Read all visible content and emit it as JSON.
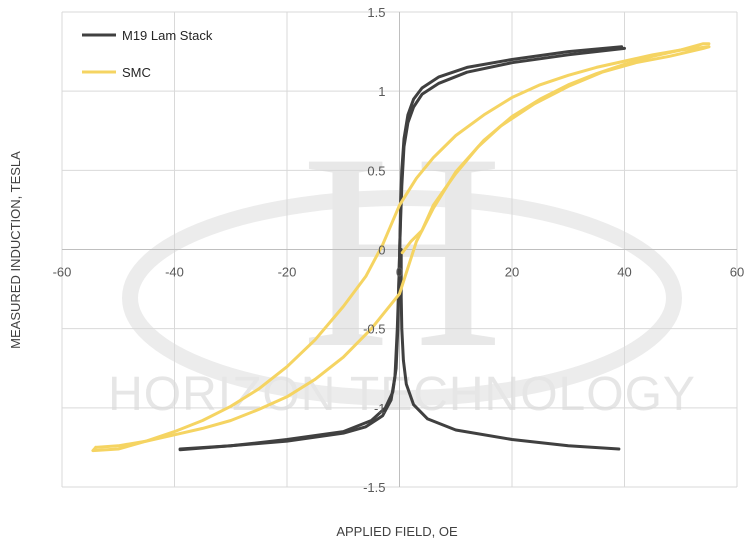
{
  "chart_data": {
    "type": "scatter",
    "title": "",
    "xlabel": "APPLIED FIELD, OE",
    "ylabel": "MEASURED INDUCTION, TESLA",
    "xlim": [
      -60,
      60
    ],
    "ylim": [
      -1.5,
      1.5
    ],
    "xticks": [
      "-60",
      "-40",
      "-20",
      "0",
      "20",
      "40",
      "60"
    ],
    "yticks": [
      "-1.5",
      "-1",
      "-0.5",
      "0",
      "0.5",
      "1",
      "1.5"
    ],
    "grid": true,
    "legend_position": "top-left",
    "watermark": {
      "text": "HORIZON TECHNOLOGY",
      "logo": "H"
    },
    "series": [
      {
        "name": "M19 Lam Stack",
        "color": "#404040",
        "segments": [
          [
            [
              0.3,
              0
            ],
            [
              0.3,
              -0.1
            ],
            [
              0.3,
              -0.3
            ],
            [
              0.4,
              -0.5
            ],
            [
              0.7,
              -0.7
            ],
            [
              1.2,
              -0.85
            ],
            [
              2.5,
              -0.98
            ],
            [
              5,
              -1.07
            ],
            [
              10,
              -1.14
            ],
            [
              20,
              -1.2
            ],
            [
              30,
              -1.24
            ],
            [
              39,
              -1.26
            ]
          ],
          [
            [
              -39,
              -1.26
            ],
            [
              -30,
              -1.24
            ],
            [
              -20,
              -1.21
            ],
            [
              -10,
              -1.16
            ],
            [
              -6,
              -1.12
            ],
            [
              -3,
              -1.05
            ],
            [
              -1.5,
              -0.95
            ],
            [
              -0.8,
              -0.8
            ],
            [
              -0.4,
              -0.5
            ],
            [
              -0.1,
              -0.2
            ],
            [
              0.1,
              0.1
            ],
            [
              0.4,
              0.4
            ],
            [
              0.8,
              0.65
            ],
            [
              1.5,
              0.8
            ],
            [
              2.5,
              0.9
            ],
            [
              4,
              0.98
            ],
            [
              7,
              1.05
            ],
            [
              12,
              1.12
            ],
            [
              20,
              1.18
            ],
            [
              30,
              1.23
            ],
            [
              40,
              1.27
            ]
          ],
          [
            [
              39.5,
              1.28
            ],
            [
              30,
              1.25
            ],
            [
              20,
              1.2
            ],
            [
              12,
              1.15
            ],
            [
              7,
              1.09
            ],
            [
              4,
              1.02
            ],
            [
              2.5,
              0.95
            ],
            [
              1.5,
              0.85
            ],
            [
              0.8,
              0.7
            ],
            [
              0.4,
              0.5
            ],
            [
              0.2,
              0.3
            ],
            [
              0.1,
              0.1
            ],
            [
              -0.1,
              -0.2
            ],
            [
              -0.3,
              -0.5
            ],
            [
              -0.6,
              -0.75
            ],
            [
              -1.2,
              -0.9
            ],
            [
              -2.5,
              -1
            ],
            [
              -5,
              -1.08
            ],
            [
              -10,
              -1.15
            ],
            [
              -20,
              -1.2
            ],
            [
              -30,
              -1.24
            ],
            [
              -39,
              -1.265
            ]
          ]
        ]
      },
      {
        "name": "SMC",
        "color": "#f5d462",
        "segments": [
          [
            [
              0.5,
              -0.02
            ],
            [
              2,
              0.05
            ],
            [
              4,
              0.12
            ],
            [
              6,
              0.28
            ],
            [
              8,
              0.38
            ],
            [
              10,
              0.48
            ],
            [
              14,
              0.65
            ],
            [
              18,
              0.78
            ],
            [
              24,
              0.92
            ],
            [
              30,
              1.03
            ],
            [
              36,
              1.12
            ],
            [
              42,
              1.18
            ],
            [
              48,
              1.22
            ],
            [
              54,
              1.27
            ],
            [
              55,
              1.28
            ]
          ],
          [
            [
              55,
              1.28
            ],
            [
              50,
              1.26
            ],
            [
              45,
              1.22
            ],
            [
              40,
              1.17
            ],
            [
              35,
              1.11
            ],
            [
              30,
              1.04
            ],
            [
              25,
              0.95
            ],
            [
              20,
              0.84
            ],
            [
              15,
              0.69
            ],
            [
              10,
              0.49
            ],
            [
              6,
              0.26
            ],
            [
              3,
              0.05
            ],
            [
              0,
              -0.28
            ],
            [
              -5,
              -0.5
            ],
            [
              -10,
              -0.68
            ],
            [
              -15,
              -0.82
            ],
            [
              -20,
              -0.93
            ],
            [
              -25,
              -1.01
            ],
            [
              -30,
              -1.08
            ],
            [
              -35,
              -1.13
            ],
            [
              -40,
              -1.17
            ],
            [
              -45,
              -1.21
            ],
            [
              -50,
              -1.24
            ],
            [
              -54,
              -1.25
            ]
          ],
          [
            [
              -54,
              -1.25
            ],
            [
              -54.5,
              -1.27
            ],
            [
              -50,
              -1.26
            ],
            [
              -45,
              -1.21
            ],
            [
              -40,
              -1.15
            ],
            [
              -35,
              -1.08
            ],
            [
              -30,
              -0.99
            ],
            [
              -25,
              -0.88
            ],
            [
              -20,
              -0.74
            ],
            [
              -15,
              -0.57
            ],
            [
              -10,
              -0.36
            ],
            [
              -6,
              -0.17
            ],
            [
              -3,
              0.03
            ],
            [
              0,
              0.28
            ],
            [
              3,
              0.45
            ],
            [
              6,
              0.58
            ],
            [
              10,
              0.72
            ],
            [
              15,
              0.85
            ],
            [
              20,
              0.96
            ],
            [
              25,
              1.04
            ],
            [
              30,
              1.1
            ],
            [
              35,
              1.15
            ],
            [
              40,
              1.19
            ],
            [
              45,
              1.23
            ],
            [
              50,
              1.26
            ],
            [
              54,
              1.3
            ],
            [
              55,
              1.3
            ]
          ]
        ]
      }
    ]
  }
}
